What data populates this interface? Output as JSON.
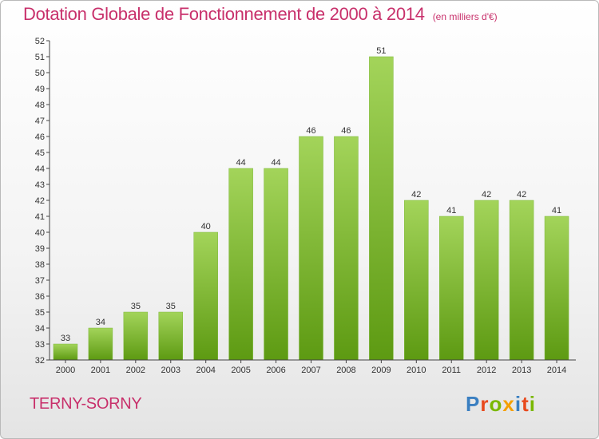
{
  "header": {
    "title": "Dotation Globale de Fonctionnement de 2000 à 2014",
    "subtitle": "(en milliers d'€)"
  },
  "footer": {
    "commune": "TERNY-SORNY",
    "logo_text": "Proxiti"
  },
  "colors": {
    "title": "#c8306b",
    "bar_light": "#a3d45a",
    "bar_dark": "#5d9a12",
    "logo": [
      "#3a7fc1",
      "#e8491d",
      "#7ab800",
      "#f5a000",
      "#3a7fc1",
      "#e8491d",
      "#7ab800"
    ]
  },
  "chart_data": {
    "type": "bar",
    "title": "Dotation Globale de Fonctionnement de 2000 à 2014",
    "subtitle": "(en milliers d'€)",
    "categories": [
      "2000",
      "2001",
      "2002",
      "2003",
      "2004",
      "2005",
      "2006",
      "2007",
      "2008",
      "2009",
      "2010",
      "2011",
      "2012",
      "2013",
      "2014"
    ],
    "values": [
      33,
      34,
      35,
      35,
      40,
      44,
      44,
      46,
      46,
      51,
      42,
      41,
      42,
      42,
      41
    ],
    "xlabel": "",
    "ylabel": "",
    "ylim": [
      32,
      52
    ],
    "yticks": [
      32,
      33,
      34,
      35,
      36,
      37,
      38,
      39,
      40,
      41,
      42,
      43,
      44,
      45,
      46,
      47,
      48,
      49,
      50,
      51,
      52
    ],
    "grid": false,
    "data_labels": true
  }
}
